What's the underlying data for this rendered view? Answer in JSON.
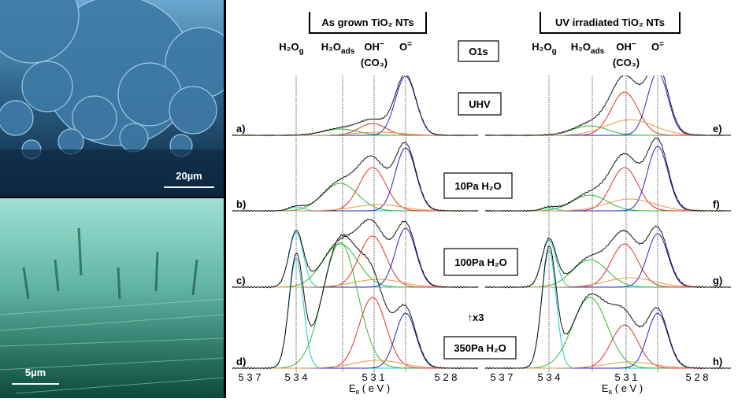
{
  "images": [
    {
      "scale_bar": "20µm"
    },
    {
      "scale_bar": "5µm"
    }
  ],
  "panels": [
    {
      "title": "As grown TiO₂ NTs",
      "rows": [
        "a)",
        "b)",
        "c)",
        "d)"
      ],
      "x_ticks": [
        "5 3 7",
        "5 3 4",
        "5 3 1",
        "5 2 8"
      ]
    },
    {
      "title": "UV irradiated TiO₂ NTs",
      "rows": [
        "e)",
        "f)",
        "g)",
        "h)"
      ],
      "x_ticks": [
        "5 3 7",
        "5 3 4",
        "5 3 1",
        "5 2 8"
      ]
    }
  ],
  "peak_labels": [
    {
      "text": "H₂O",
      "sub": "g"
    },
    {
      "text": "H₂O",
      "sub": "ads"
    },
    {
      "text": "OH",
      "sup": "−",
      "note": "(CO₃)"
    },
    {
      "text": "O",
      "sup": "="
    }
  ],
  "x_axis": {
    "text": "E",
    "sub": "B",
    "rest": " ( e V )"
  },
  "region": "O1s",
  "conditions": [
    "UHV",
    "10Pa H₂O",
    "100Pa H₂O",
    "350Pa H₂O"
  ],
  "multiplier": "↑x3"
}
